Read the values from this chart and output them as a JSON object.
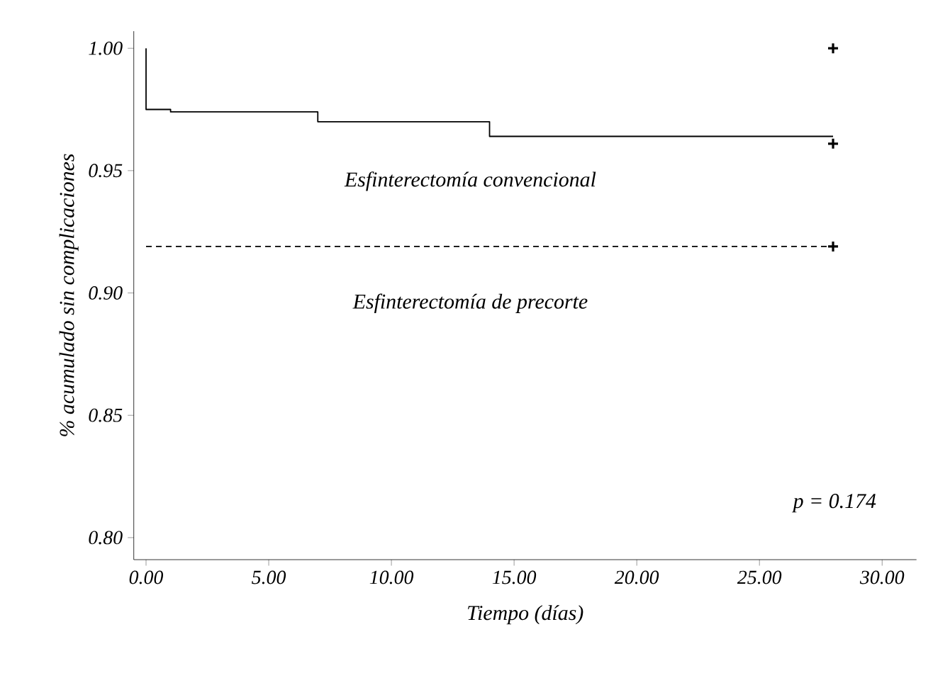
{
  "chart_data": {
    "type": "step",
    "xlabel": "Tiempo (días)",
    "ylabel": "% acumulado sin complicaciones",
    "series": [
      {
        "color": "#000000",
        "line_style": "solid",
        "marker": "none",
        "x": [
          0,
          0,
          1,
          7,
          14,
          28
        ],
        "values": [
          1.0,
          0.975,
          0.974,
          0.97,
          0.964,
          0.964
        ]
      },
      {
        "type": "line",
        "color": "#000000",
        "line_style": "dashed",
        "marker": "none",
        "x": [
          0,
          28
        ],
        "values": [
          0.919,
          0.919
        ]
      },
      {
        "type": "scatter",
        "color": "#000000",
        "marker": "cross",
        "x": [
          28,
          28,
          28
        ],
        "values": [
          1.0,
          0.961,
          0.919
        ]
      }
    ],
    "annotations": [
      "Esfinterectomía convencional",
      "Esfinterectomía de precorte",
      "p = 0.174"
    ],
    "xlim": [
      -0.5,
      31.4
    ],
    "ylim": [
      0.791,
      1.007
    ],
    "xticks": [
      {
        "value": 0,
        "label": "0.00"
      },
      {
        "value": 5,
        "label": "5.00"
      },
      {
        "value": 10,
        "label": "10.00"
      },
      {
        "value": 15,
        "label": "15.00"
      },
      {
        "value": 20,
        "label": "20.00"
      },
      {
        "value": 25,
        "label": "25.00"
      },
      {
        "value": 30,
        "label": "30.00"
      }
    ],
    "yticks": [
      {
        "value": 0.8,
        "label": "0.80"
      },
      {
        "value": 0.85,
        "label": "0.85"
      },
      {
        "value": 0.9,
        "label": "0.90"
      },
      {
        "value": 0.95,
        "label": "0.95"
      },
      {
        "value": 1.0,
        "label": "1.00"
      }
    ],
    "grid": false
  }
}
